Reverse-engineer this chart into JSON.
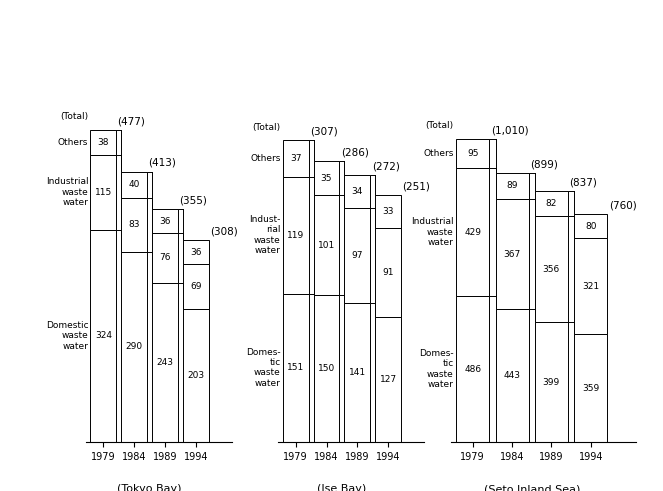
{
  "tokyo_bay": {
    "years": [
      "1979",
      "1984",
      "1989",
      "1994"
    ],
    "domestic": [
      324,
      290,
      243,
      203
    ],
    "industrial": [
      115,
      83,
      76,
      69
    ],
    "others": [
      38,
      40,
      36,
      36
    ],
    "totals": [
      "(477)",
      "(413)",
      "(355)",
      "(308)"
    ]
  },
  "ise_bay": {
    "years": [
      "1979",
      "1984",
      "1989",
      "1994"
    ],
    "domestic": [
      151,
      150,
      141,
      127
    ],
    "industrial": [
      119,
      101,
      97,
      91
    ],
    "others": [
      37,
      35,
      34,
      33
    ],
    "totals": [
      "(307)",
      "(286)",
      "(272)",
      "(251)"
    ]
  },
  "seto": {
    "years": [
      "1979",
      "1984",
      "1989",
      "1994"
    ],
    "domestic": [
      486,
      443,
      399,
      359
    ],
    "industrial": [
      429,
      367,
      356,
      321
    ],
    "others": [
      95,
      89,
      82,
      80
    ],
    "totals": [
      "(1,010)",
      "(899)",
      "(837)",
      "(760)"
    ]
  },
  "tokyo_labels": {
    "domestic": "Domestic\nwaste\nwater",
    "industrial": "Industrial\nwaste\nwater",
    "others": "Others",
    "total": "(Total)"
  },
  "ise_labels": {
    "domestic": "Domes-\ntic\nwaste\nwater",
    "industrial": "Indust-\nrial\nwaste\nwater",
    "others": "Others",
    "total": "(Total)"
  },
  "seto_labels": {
    "domestic": "Domes-\ntic\nwaste\nwater",
    "industrial": "Industrial\nwaste\nwater",
    "others": "Others",
    "total": "(Total)"
  },
  "bay_names": [
    "(Tokyo Bay)",
    "(Ise Bay)",
    "(Seto Inland Sea)"
  ]
}
